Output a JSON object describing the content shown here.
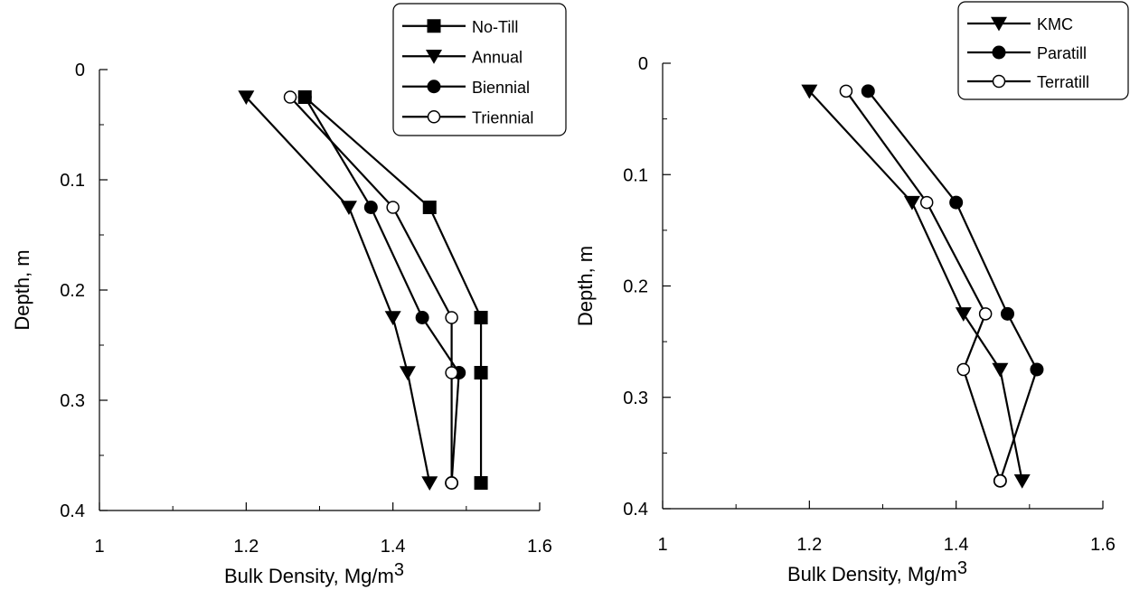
{
  "chart_data": [
    {
      "type": "line",
      "xlabel": "Bulk Density, Mg/m",
      "xlabel_sup": "3",
      "ylabel": "Depth, m",
      "xlim": [
        1,
        1.6
      ],
      "ylim": [
        0,
        0.4
      ],
      "y_inverted": true,
      "xticks": [
        "1",
        "1.2",
        "1.4",
        "1.6"
      ],
      "yticks": [
        "0",
        "0.1",
        "0.2",
        "0.3",
        "0.4"
      ],
      "grid": false,
      "legend_position": "top-right",
      "series": [
        {
          "name": "No-Till",
          "marker": "square",
          "x": [
            1.28,
            1.45,
            1.52,
            1.52,
            1.52
          ],
          "y": [
            0.025,
            0.125,
            0.225,
            0.275,
            0.375
          ]
        },
        {
          "name": "Annual",
          "marker": "triangle-down",
          "x": [
            1.2,
            1.34,
            1.4,
            1.42,
            1.45
          ],
          "y": [
            0.025,
            0.125,
            0.225,
            0.275,
            0.375
          ]
        },
        {
          "name": "Biennial",
          "marker": "circle-filled",
          "x": [
            1.28,
            1.37,
            1.44,
            1.49,
            1.48
          ],
          "y": [
            0.025,
            0.125,
            0.225,
            0.275,
            0.375
          ]
        },
        {
          "name": "Triennial",
          "marker": "circle-open",
          "x": [
            1.26,
            1.4,
            1.48,
            1.48,
            1.48
          ],
          "y": [
            0.025,
            0.125,
            0.225,
            0.275,
            0.375
          ]
        }
      ]
    },
    {
      "type": "line",
      "xlabel": "Bulk Density, Mg/m",
      "xlabel_sup": "3",
      "ylabel": "Depth, m",
      "xlim": [
        1,
        1.6
      ],
      "ylim": [
        0,
        0.4
      ],
      "y_inverted": true,
      "xticks": [
        "1",
        "1.2",
        "1.4",
        "1.6"
      ],
      "yticks": [
        "0",
        "0.1",
        "0.2",
        "0.3",
        "0.4"
      ],
      "grid": false,
      "legend_position": "top-right",
      "series": [
        {
          "name": "KMC",
          "marker": "triangle-down",
          "x": [
            1.2,
            1.34,
            1.41,
            1.46,
            1.49
          ],
          "y": [
            0.025,
            0.125,
            0.225,
            0.275,
            0.375
          ]
        },
        {
          "name": "Paratill",
          "marker": "circle-filled",
          "x": [
            1.28,
            1.4,
            1.47,
            1.51,
            1.46
          ],
          "y": [
            0.025,
            0.125,
            0.225,
            0.275,
            0.375
          ]
        },
        {
          "name": "Terratill",
          "marker": "circle-open",
          "x": [
            1.25,
            1.36,
            1.44,
            1.41,
            1.46
          ],
          "y": [
            0.025,
            0.125,
            0.225,
            0.275,
            0.375
          ]
        }
      ]
    }
  ]
}
